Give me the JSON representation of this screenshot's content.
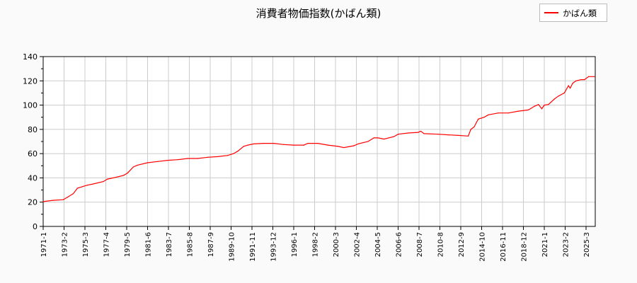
{
  "chart_data": {
    "type": "line",
    "title": "消費者物価指数(かばん類)",
    "xlabel": "",
    "ylabel": "",
    "ylim": [
      0,
      140
    ],
    "yticks": [
      0,
      20,
      40,
      60,
      80,
      100,
      120,
      140
    ],
    "xticks": [
      "1971-1",
      "1973-2",
      "1975-3",
      "1977-4",
      "1979-5",
      "1981-6",
      "1983-7",
      "1985-8",
      "1987-9",
      "1989-10",
      "1991-11",
      "1993-12",
      "1996-1",
      "1998-2",
      "2000-3",
      "2002-4",
      "2004-5",
      "2006-6",
      "2008-7",
      "2010-8",
      "2012-9",
      "2014-10",
      "2016-11",
      "2018-12",
      "2021-1",
      "2023-2",
      "2025-3"
    ],
    "xlim": [
      "1971-1",
      "2026-2"
    ],
    "grid": true,
    "legend_position": "top-right",
    "series": [
      {
        "name": "かばん類",
        "color": "#ff0000",
        "points": [
          [
            "1971-1",
            20.5
          ],
          [
            "1972-1",
            21.5
          ],
          [
            "1973-1",
            22
          ],
          [
            "1973-6",
            24
          ],
          [
            "1974-1",
            27
          ],
          [
            "1974-6",
            31.5
          ],
          [
            "1975-1",
            33
          ],
          [
            "1975-6",
            34
          ],
          [
            "1976-1",
            35
          ],
          [
            "1977-1",
            37
          ],
          [
            "1977-6",
            39
          ],
          [
            "1978-1",
            40
          ],
          [
            "1979-1",
            42
          ],
          [
            "1979-6",
            44
          ],
          [
            "1980-1",
            49
          ],
          [
            "1980-6",
            50.5
          ],
          [
            "1981-6",
            52.5
          ],
          [
            "1982-6",
            53.5
          ],
          [
            "1983-6",
            54.5
          ],
          [
            "1984-6",
            55
          ],
          [
            "1985-6",
            56
          ],
          [
            "1986-6",
            56
          ],
          [
            "1987-6",
            57
          ],
          [
            "1988-6",
            57.5
          ],
          [
            "1989-6",
            58.5
          ],
          [
            "1990-1",
            60
          ],
          [
            "1990-6",
            62
          ],
          [
            "1991-1",
            66
          ],
          [
            "1991-6",
            67
          ],
          [
            "1992-1",
            68
          ],
          [
            "1993-1",
            68.5
          ],
          [
            "1994-1",
            68.5
          ],
          [
            "1995-1",
            67.5
          ],
          [
            "1996-1",
            67
          ],
          [
            "1997-1",
            67
          ],
          [
            "1997-6",
            68.5
          ],
          [
            "1998-6",
            68.5
          ],
          [
            "1999-6",
            67
          ],
          [
            "2000-6",
            66
          ],
          [
            "2001-1",
            65
          ],
          [
            "2002-1",
            66.5
          ],
          [
            "2002-6",
            68
          ],
          [
            "2003-6",
            70
          ],
          [
            "2004-1",
            73
          ],
          [
            "2004-6",
            73
          ],
          [
            "2005-1",
            72
          ],
          [
            "2006-1",
            74
          ],
          [
            "2006-6",
            76
          ],
          [
            "2007-6",
            77
          ],
          [
            "2008-6",
            77.5
          ],
          [
            "2008-9",
            78.5
          ],
          [
            "2009-1",
            76.5
          ],
          [
            "2010-6",
            76
          ],
          [
            "2011-6",
            75.5
          ],
          [
            "2012-6",
            75
          ],
          [
            "2013-6",
            74.5
          ],
          [
            "2013-9",
            80
          ],
          [
            "2014-1",
            82
          ],
          [
            "2014-4",
            86
          ],
          [
            "2014-6",
            88.5
          ],
          [
            "2015-1",
            90
          ],
          [
            "2015-6",
            92
          ],
          [
            "2016-6",
            93.5
          ],
          [
            "2017-6",
            93.5
          ],
          [
            "2018-6",
            95
          ],
          [
            "2019-6",
            96
          ],
          [
            "2020-1",
            99
          ],
          [
            "2020-6",
            100.5
          ],
          [
            "2020-10",
            97
          ],
          [
            "2021-1",
            100
          ],
          [
            "2021-6",
            100.5
          ],
          [
            "2022-1",
            105
          ],
          [
            "2022-6",
            107.5
          ],
          [
            "2023-1",
            110
          ],
          [
            "2023-6",
            116
          ],
          [
            "2023-8",
            114
          ],
          [
            "2023-11",
            118
          ],
          [
            "2024-3",
            120
          ],
          [
            "2024-9",
            121
          ],
          [
            "2025-1",
            121
          ],
          [
            "2025-6",
            123.5
          ],
          [
            "2026-1",
            123.5
          ]
        ]
      }
    ]
  }
}
